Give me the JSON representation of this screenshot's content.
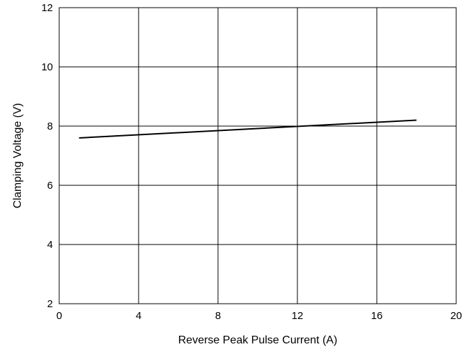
{
  "chart_data": {
    "type": "line",
    "title": "",
    "xlabel": "Reverse Peak Pulse Current (A)",
    "ylabel": "Clamping Voltage (V)",
    "xlim": [
      0,
      20
    ],
    "ylim": [
      2,
      12
    ],
    "x_ticks": [
      "0",
      "4",
      "8",
      "12",
      "16",
      "20"
    ],
    "y_ticks": [
      "2",
      "4",
      "6",
      "8",
      "10",
      "12"
    ],
    "grid": true,
    "line_color": "#000000",
    "series": [
      {
        "x": [
          1,
          18
        ],
        "y": [
          7.6,
          8.2
        ]
      }
    ]
  }
}
